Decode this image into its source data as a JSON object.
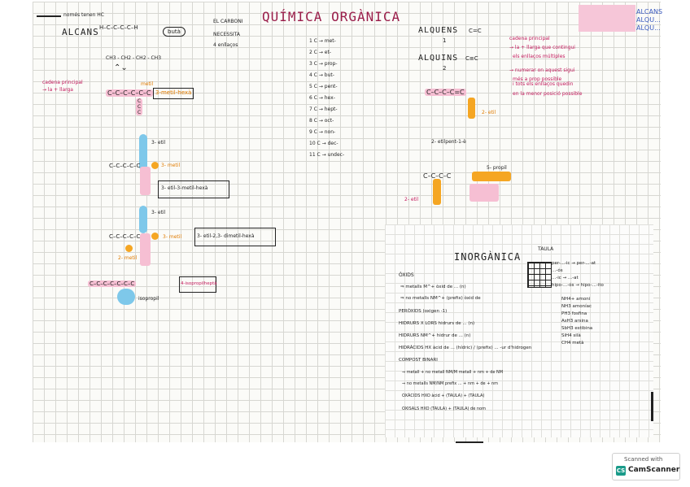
{
  "titles": {
    "main": "QUÍMICA ORGÀNICA",
    "alcans": "ALCANS",
    "alquens": "ALQUENS",
    "alquins": "ALQUINS",
    "inorganica": "INORGÀNICA",
    "taula": "TAULA"
  },
  "alcans_notes": {
    "top": "només tenen HC",
    "condensed": "CH3 - CH2 - CH2 - CH3",
    "cadena_1": "cadena principal",
    "cadena_2": "→ la + llarga",
    "boxed": "butà"
  },
  "carboni": {
    "line1": "EL CARBONI",
    "line2": "NECESSITA",
    "line3": "4 enllaços"
  },
  "prefixes": [
    "1 C → met-",
    "2 C → et-",
    "3 C → prop-",
    "4 C → but-",
    "5 C → pent-",
    "6 C → hex-",
    "7 C → hept-",
    "8 C → oct-",
    "9 C → non-",
    "10 C → dec-",
    "11 C → undec-"
  ],
  "alcans_examples": {
    "metil_label": "metil",
    "ex1": "3-metil-hexà",
    "etil1": "3- etil",
    "metil2": "3- metil",
    "ex2": "3- etil-3-metil-hexà",
    "etil2": "3- etil",
    "metil3": "3- metil",
    "metil4": "2- metil",
    "ex3": "3- etil-2,3- dimetil-hexà",
    "isopropil": "isopropil",
    "ex4": "4-isopropilheptà"
  },
  "alquens": {
    "bond_double": "C=C",
    "bond_triple": "C≡C",
    "r1": "1",
    "r2": "2",
    "notes": [
      "cadena principal",
      "→ la + llarga que contingui",
      "els enllaços múltiples",
      "→ numerar on aquest sigui",
      "més a prop possible",
      "i tots els enllaços quedin",
      "en la menor posició possible"
    ],
    "etil": "2- etil",
    "name1": "2- etilpent-1-è",
    "propil": "5- propil",
    "etil2": "2- etil"
  },
  "inorganica_list": [
    "ÒXIDS",
    "⇒ metalls M^+ òxid de ... (n)",
    "⇒ no metalls NM^+ (prefix) òxid de",
    "PERÒXIDS (oxigen -1)",
    "HIDRURS X LORS hidrurs de ... (n)",
    "HIDRURS NM^+ hidrur de ... (n)",
    "HIDRÀCIDS HX   àcid de ... (hídric) / (prefix) ... -ur d'hidrogen",
    "COMPOST BINARI",
    "⇒ metall + no metall NM/M  metall + nm + de NM",
    "⇒ no metalls NM/NM  prefix ... + nm + de + nm",
    "OXÀCIDS HXO  àcid + (TAULA) + (TAULA)",
    "OXISALS HXO  (TAULA) + (TAULA) de nom"
  ],
  "taula_rows": [
    "per-...-ic → per-...-at",
    "...-ós",
    "...-ic → ...-at",
    "hipo-...-ós → hipo-...-ito"
  ],
  "ions": [
    "NH4+ amoni",
    "NH3 amoníac",
    "PH3 fosfina",
    "AsH3 arsina",
    "SbH3 estibina",
    "SiH4 silà",
    "CH4 metà"
  ],
  "alc_side": [
    "ALCANS",
    "ALQU...",
    "ALQU..."
  ],
  "scanner": {
    "line1": "Scanned with",
    "brand": "CamScanner"
  },
  "colors": {
    "pink": "#f6bfd3",
    "blue": "#7ec8ea",
    "orange": "#f5a623",
    "red_ink": "#c2185b"
  }
}
